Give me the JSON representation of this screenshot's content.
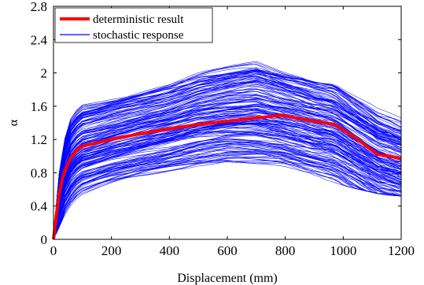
{
  "chart_data": {
    "type": "line",
    "xlabel": "Displacement (mm)",
    "ylabel": "α",
    "xlim": [
      0,
      1200
    ],
    "ylim": [
      0,
      2.8
    ],
    "xticks": [
      0,
      200,
      400,
      600,
      800,
      1000,
      1200
    ],
    "xtick_labels": [
      "0",
      "200",
      "400",
      "600",
      "800",
      "1000",
      "1200"
    ],
    "yticks": [
      0,
      0.4,
      0.8,
      1.2,
      1.6,
      2.0,
      2.4,
      2.8
    ],
    "ytick_labels": [
      "0",
      "0.4",
      "0.8",
      "1.2",
      "1.6",
      "2",
      "2.4",
      "2.8"
    ],
    "grid": false,
    "legend_position": "top-left",
    "legend": [
      {
        "label": "deterministic result",
        "color": "#ff0000"
      },
      {
        "label": "stochastic response",
        "color": "#0000ff"
      }
    ],
    "series": [
      {
        "name": "deterministic result",
        "color": "#ff0000",
        "x": [
          0,
          10,
          20,
          30,
          45,
          60,
          80,
          100,
          150,
          200,
          300,
          400,
          500,
          600,
          700,
          790,
          850,
          900,
          970,
          1030,
          1080,
          1120,
          1160,
          1200
        ],
        "y": [
          0,
          0.3,
          0.55,
          0.72,
          0.88,
          0.98,
          1.07,
          1.12,
          1.16,
          1.2,
          1.27,
          1.33,
          1.38,
          1.42,
          1.46,
          1.49,
          1.45,
          1.42,
          1.38,
          1.25,
          1.12,
          1.02,
          1.0,
          0.97
        ]
      },
      {
        "name": "stochastic response",
        "color": "#0000ff",
        "x": [
          0,
          10,
          20,
          30,
          45,
          60,
          80,
          100,
          150,
          200,
          300,
          400,
          500,
          600,
          700,
          790,
          850,
          900,
          970,
          1030,
          1080,
          1120,
          1160,
          1200
        ],
        "envelope_upper": [
          0.05,
          0.45,
          0.8,
          1.05,
          1.3,
          1.45,
          1.55,
          1.62,
          1.66,
          1.72,
          1.82,
          1.92,
          2.1,
          2.2,
          2.3,
          2.1,
          2.05,
          1.98,
          1.95,
          1.8,
          1.72,
          1.65,
          1.6,
          1.55
        ],
        "envelope_lower": [
          0,
          0.08,
          0.15,
          0.22,
          0.3,
          0.35,
          0.42,
          0.47,
          0.55,
          0.62,
          0.72,
          0.8,
          0.88,
          0.92,
          0.85,
          0.8,
          0.75,
          0.72,
          0.68,
          0.62,
          0.58,
          0.55,
          0.53,
          0.52
        ],
        "curve_count": 180
      }
    ]
  }
}
